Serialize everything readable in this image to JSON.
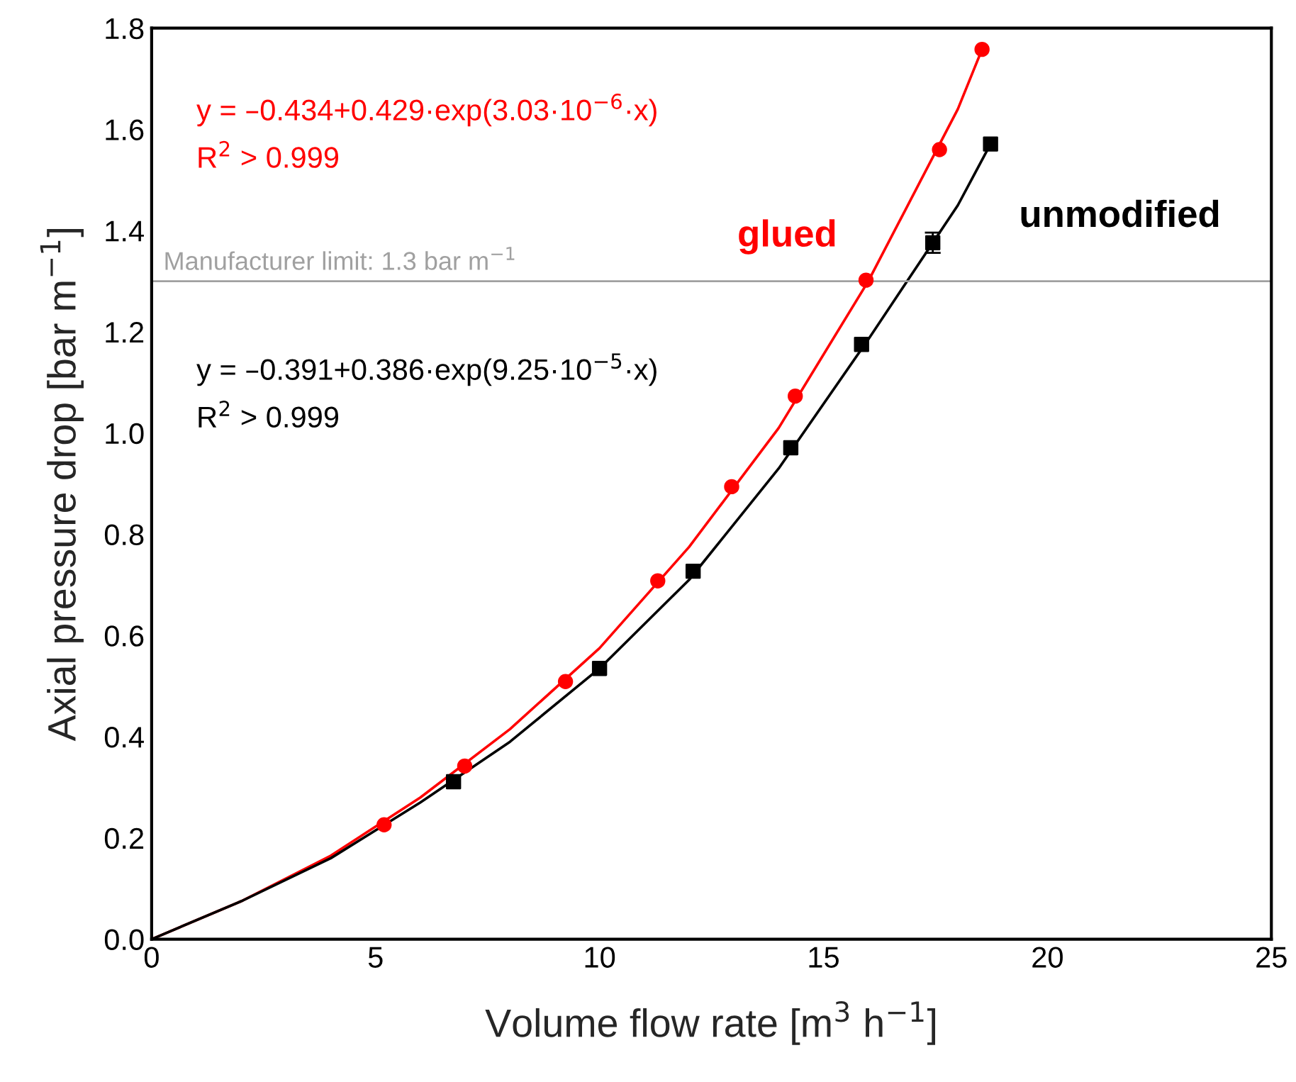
{
  "chart_data": {
    "type": "scatter",
    "xlabel": "Volume flow rate [m$^{3}$ h$^{−1}$]",
    "ylabel": "Axial pressure drop [bar m$^{−1}$]",
    "series": [
      {
        "type": "line",
        "color": "#ff0000",
        "marker": "none",
        "x": [
          0,
          2,
          4,
          6,
          8,
          10,
          12,
          14,
          16,
          18,
          18.54
        ],
        "values": [
          0,
          0.075,
          0.165,
          0.28,
          0.415,
          0.575,
          0.775,
          1.01,
          1.3,
          1.64,
          1.758
        ]
      },
      {
        "type": "line",
        "color": "#000000",
        "marker": "none",
        "x": [
          0,
          2,
          4,
          6,
          8,
          10,
          12,
          14,
          16,
          18,
          18.73
        ],
        "values": [
          0,
          0.075,
          0.16,
          0.27,
          0.39,
          0.535,
          0.71,
          0.93,
          1.185,
          1.45,
          1.571
        ]
      },
      {
        "name": "glued",
        "color": "#ff0000",
        "marker": "circle",
        "x": [
          5.19,
          6.99,
          9.24,
          11.3,
          12.95,
          14.37,
          15.95,
          17.59,
          18.54
        ],
        "values": [
          0.226,
          0.342,
          0.509,
          0.708,
          0.894,
          1.073,
          1.302,
          1.56,
          1.758
        ]
      },
      {
        "name": "unmodified",
        "color": "#000000",
        "marker": "square",
        "x": [
          6.74,
          10.0,
          12.09,
          14.27,
          15.85,
          17.44,
          18.73
        ],
        "values": [
          0.311,
          0.535,
          0.727,
          0.971,
          1.175,
          1.376,
          1.571
        ],
        "errors": [
          null,
          null,
          null,
          null,
          null,
          0.02,
          null
        ]
      }
    ],
    "annotations": [
      "y = –0.434+0.429·exp(3.03·10$^{−6}$·x)",
      "R$^{2}$ > 0.999",
      "y = –0.391+0.386·exp(9.25·10$^{−5}$·x)",
      "R$^{2}$ > 0.999"
    ],
    "ref_lines": [
      {
        "axis": "y",
        "value": 1.3,
        "label": "Manufacturer limit: 1.3 bar m$^{−1}$",
        "color": "#a0a0a0"
      }
    ],
    "xlim": [
      0,
      25
    ],
    "xticks": [
      0,
      5,
      10,
      15,
      20,
      25
    ],
    "ylim": [
      0,
      1.8
    ],
    "yticks": [
      {
        "value": 0,
        "label": "0.0"
      },
      {
        "value": 0.2,
        "label": "0.2"
      },
      {
        "value": 0.4,
        "label": "0.4"
      },
      {
        "value": 0.6,
        "label": "0.6"
      },
      {
        "value": 0.8,
        "label": "0.8"
      },
      {
        "value": 1.0,
        "label": "1.0"
      },
      {
        "value": 1.2,
        "label": "1.2"
      },
      {
        "value": 1.4,
        "label": "1.4"
      },
      {
        "value": 1.6,
        "label": "1.6"
      },
      {
        "value": 1.8,
        "label": "1.8"
      }
    ],
    "grid": false,
    "legend": false
  }
}
